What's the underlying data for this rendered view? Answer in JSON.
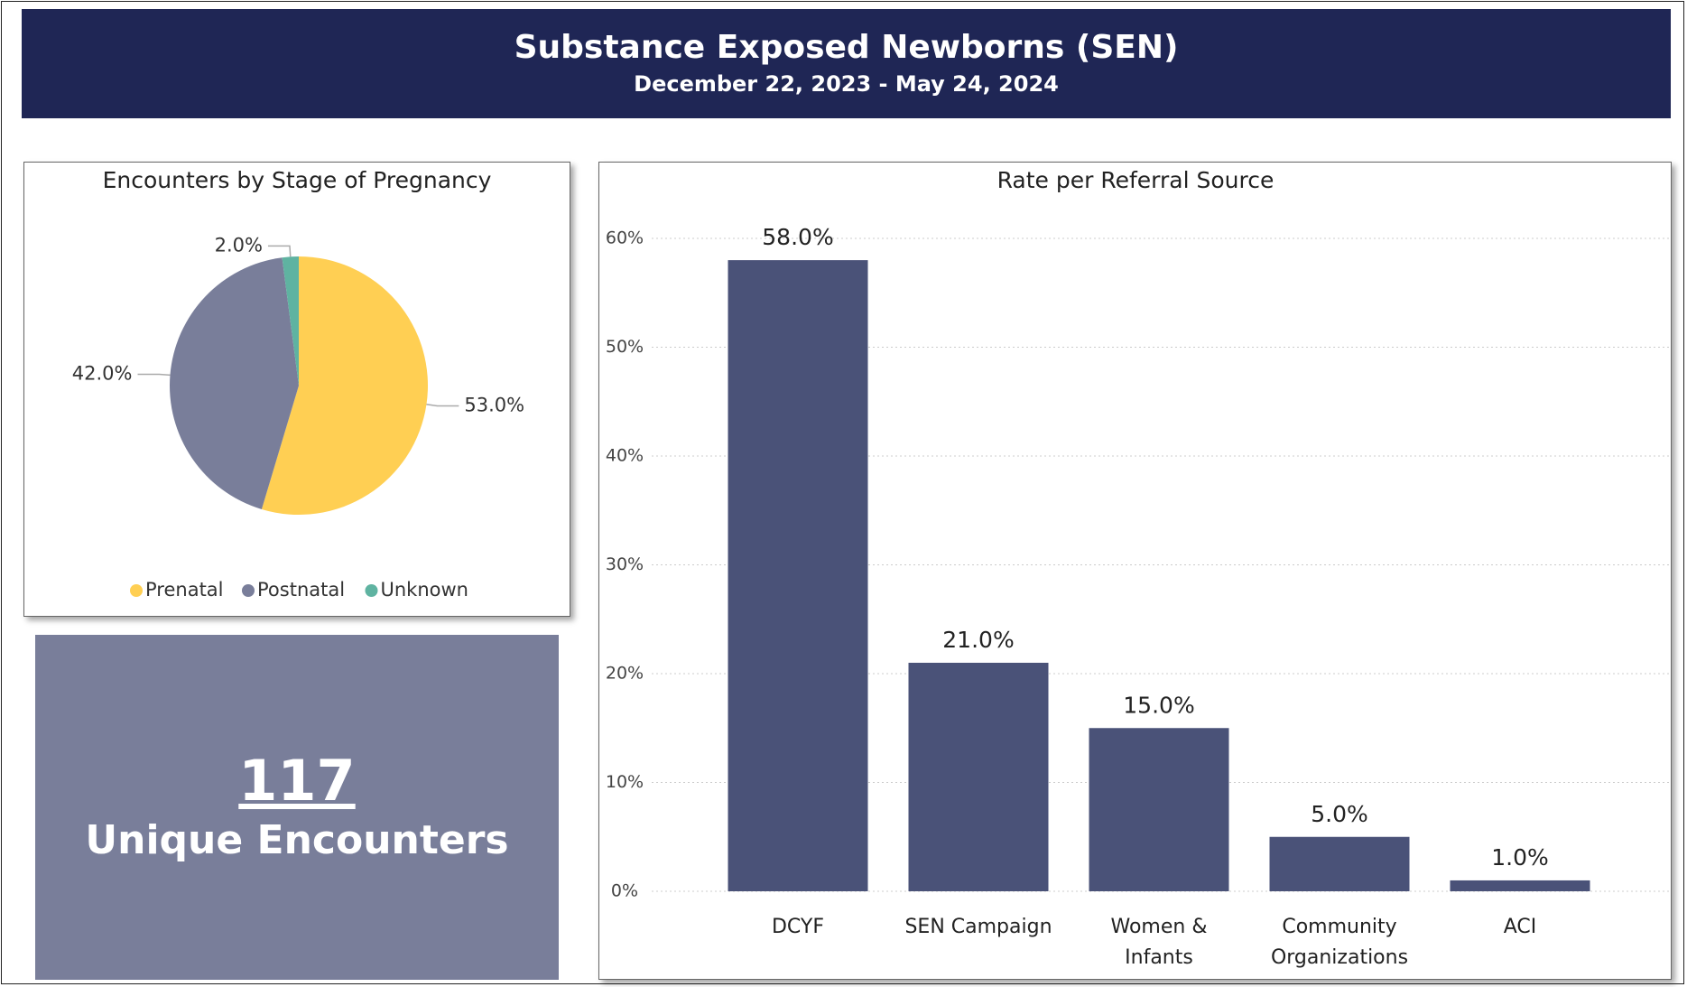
{
  "header": {
    "title": "Substance Exposed Newborns (SEN)",
    "subtitle": "December 22, 2023 - May 24, 2024"
  },
  "chart_data": [
    {
      "type": "pie",
      "title": "Encounters by Stage of Pregnancy",
      "categories": [
        "Prenatal",
        "Postnatal",
        "Unknown"
      ],
      "values": [
        53,
        42,
        2
      ],
      "value_labels": [
        "53.0%",
        "42.0%",
        "2.0%"
      ],
      "colors": [
        "#ffcf53",
        "#797e9a",
        "#5fb3a1"
      ],
      "legend": "bottom"
    },
    {
      "type": "bar",
      "title": "Rate per Referral Source",
      "categories": [
        "DCYF",
        "SEN Campaign",
        "Women & Infants",
        "Community Organizations",
        "ACI"
      ],
      "values": [
        58,
        21,
        15,
        5,
        1
      ],
      "value_labels": [
        "58.0%",
        "21.0%",
        "15.0%",
        "5.0%",
        "1.0%"
      ],
      "color": "#4a5278",
      "ylim": [
        0,
        60
      ],
      "yticks": [
        {
          "value": 0,
          "label": "0%"
        },
        {
          "value": 10,
          "label": "10%"
        },
        {
          "value": 20,
          "label": "20%"
        },
        {
          "value": 30,
          "label": "30%"
        },
        {
          "value": 40,
          "label": "40%"
        },
        {
          "value": 50,
          "label": "50%"
        },
        {
          "value": 60,
          "label": "60%"
        }
      ],
      "grid": true
    }
  ],
  "kpi": {
    "value": "117",
    "label": "Unique Encounters"
  }
}
